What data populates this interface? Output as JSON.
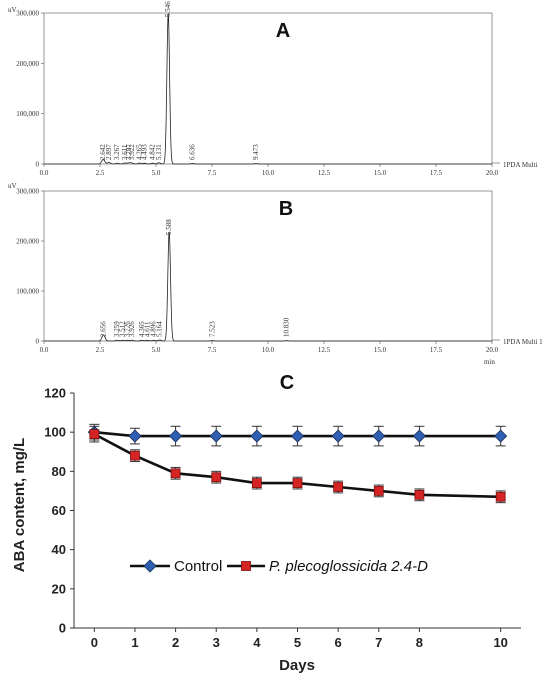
{
  "chart_data": [
    {
      "panel": "A",
      "type": "line",
      "y_unit": "uV",
      "instrument_label": "1PDA Multi",
      "xlim": [
        0.0,
        20.0
      ],
      "ylim": [
        0,
        300000
      ],
      "x_ticks": [
        "0.0",
        "2.5",
        "5.0",
        "7.5",
        "10.0",
        "12.5",
        "15.0",
        "17.5",
        "20.0"
      ],
      "y_ticks": [
        "0",
        "100,000",
        "200,000",
        "300,000"
      ],
      "peaks": [
        {
          "rt": 2.642,
          "label": "2.642",
          "height": 9000
        },
        {
          "rt": 2.897,
          "label": "2.897",
          "height": 3000
        },
        {
          "rt": 3.267,
          "label": "3.267",
          "height": 1500
        },
        {
          "rt": 3.611,
          "label": "3.611",
          "height": 2000
        },
        {
          "rt": 3.797,
          "label": "3.797",
          "height": 2000
        },
        {
          "rt": 3.922,
          "label": "3.922",
          "height": 1800
        },
        {
          "rt": 4.265,
          "label": "4.265",
          "height": 1800
        },
        {
          "rt": 4.493,
          "label": "4.493",
          "height": 1600
        },
        {
          "rt": 4.842,
          "label": "4.842",
          "height": 1600
        },
        {
          "rt": 5.131,
          "label": "5.131",
          "height": 2500
        },
        {
          "rt": 5.546,
          "label": "5.546",
          "height": 298000
        },
        {
          "rt": 6.636,
          "label": "6.636",
          "height": 1000
        },
        {
          "rt": 9.473,
          "label": "9.473",
          "height": 800
        }
      ]
    },
    {
      "panel": "B",
      "type": "line",
      "y_unit": "uV",
      "x_unit": "min",
      "instrument_label": "1PDA Multi 1",
      "xlim": [
        0.0,
        20.0
      ],
      "ylim": [
        0,
        300000
      ],
      "x_ticks": [
        "0.0",
        "2.5",
        "5.0",
        "7.5",
        "10.0",
        "12.5",
        "15.0",
        "17.5",
        "20.0"
      ],
      "y_ticks": [
        "0",
        "100,000",
        "200,000",
        "300,000"
      ],
      "peaks": [
        {
          "rt": 2.656,
          "label": "2.656",
          "height": 12000
        },
        {
          "rt": 3.259,
          "label": "3.259",
          "height": 1500
        },
        {
          "rt": 3.512,
          "label": "3.512",
          "height": 1500
        },
        {
          "rt": 3.726,
          "label": "3.726",
          "height": 1500
        },
        {
          "rt": 3.926,
          "label": "3.926",
          "height": 1500
        },
        {
          "rt": 4.365,
          "label": "4.365",
          "height": 1500
        },
        {
          "rt": 4.611,
          "label": "4.611",
          "height": 1500
        },
        {
          "rt": 4.896,
          "label": "4.896",
          "height": 1500
        },
        {
          "rt": 5.164,
          "label": "5.164",
          "height": 2000
        },
        {
          "rt": 5.588,
          "label": "5.588",
          "height": 218000
        },
        {
          "rt": 7.523,
          "label": "7.523",
          "height": 800
        },
        {
          "rt": 10.83,
          "label": "10.830",
          "height": 800
        }
      ]
    },
    {
      "panel": "C",
      "type": "line",
      "xlabel": "Days",
      "ylabel": "ABA content, mg/L",
      "xlim": [
        -0.5,
        10.5
      ],
      "ylim": [
        0,
        120
      ],
      "x": [
        0,
        1,
        2,
        3,
        4,
        5,
        6,
        7,
        8,
        10
      ],
      "x_tick_labels": [
        "0",
        "1",
        "2",
        "3",
        "4",
        "5",
        "6",
        "7",
        "8",
        "10"
      ],
      "y_ticks": [
        0,
        20,
        40,
        60,
        80,
        100,
        120
      ],
      "grid": false,
      "legend_position": "lower-left",
      "series": [
        {
          "name": "Control",
          "color": "#2f5fb3",
          "marker": "diamond",
          "values": [
            100,
            98,
            98,
            98,
            98,
            98,
            98,
            98,
            98,
            98
          ],
          "errors": [
            4,
            4,
            5,
            5,
            5,
            5,
            5,
            5,
            5,
            5
          ]
        },
        {
          "name": "P. plecoglossicida 2.4-D",
          "color": "#d42424",
          "marker": "square",
          "values": [
            99,
            88,
            79,
            77,
            74,
            74,
            72,
            70,
            68,
            67
          ],
          "errors": [
            4,
            3,
            3,
            3,
            3,
            3,
            3,
            3,
            3,
            3
          ]
        }
      ]
    }
  ]
}
